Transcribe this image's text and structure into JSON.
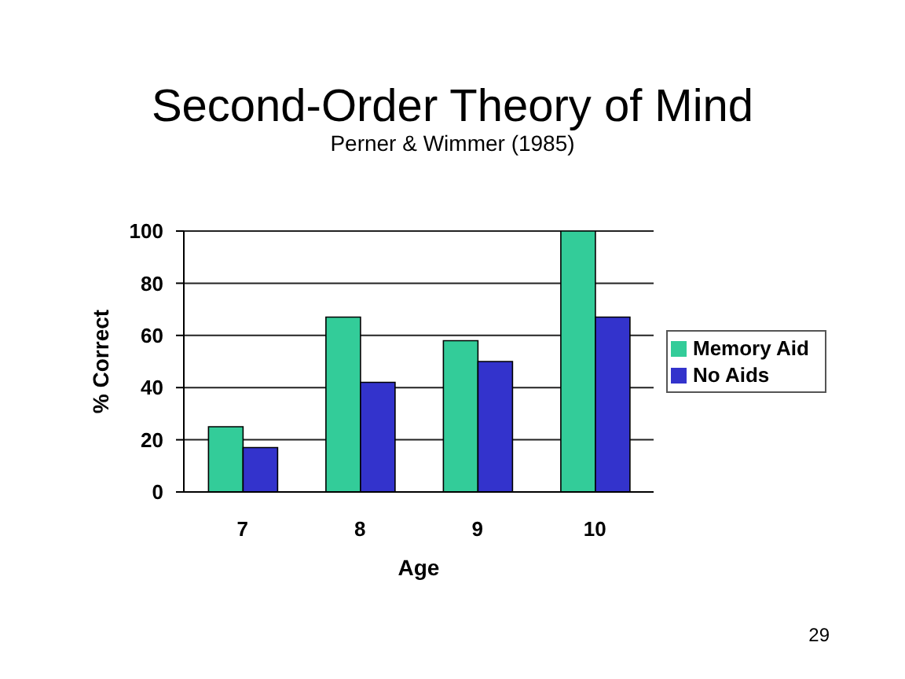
{
  "chart_data": {
    "type": "bar",
    "title": "Second-Order Theory of Mind",
    "subtitle": "Perner & Wimmer (1985)",
    "xlabel": "Age",
    "ylabel": "% Correct",
    "annotations": [
      "29"
    ],
    "categories": [
      "7",
      "8",
      "9",
      "10"
    ],
    "series": [
      {
        "name": "Memory Aid",
        "color": "#33cc99",
        "values": [
          25,
          67,
          58,
          100
        ]
      },
      {
        "name": "No Aids",
        "color": "#3333cc",
        "values": [
          17,
          42,
          50,
          67
        ]
      }
    ],
    "ylim": [
      0,
      100
    ],
    "yticks": [
      0,
      20,
      40,
      60,
      80,
      100
    ],
    "grid": "y",
    "legend": "right"
  }
}
